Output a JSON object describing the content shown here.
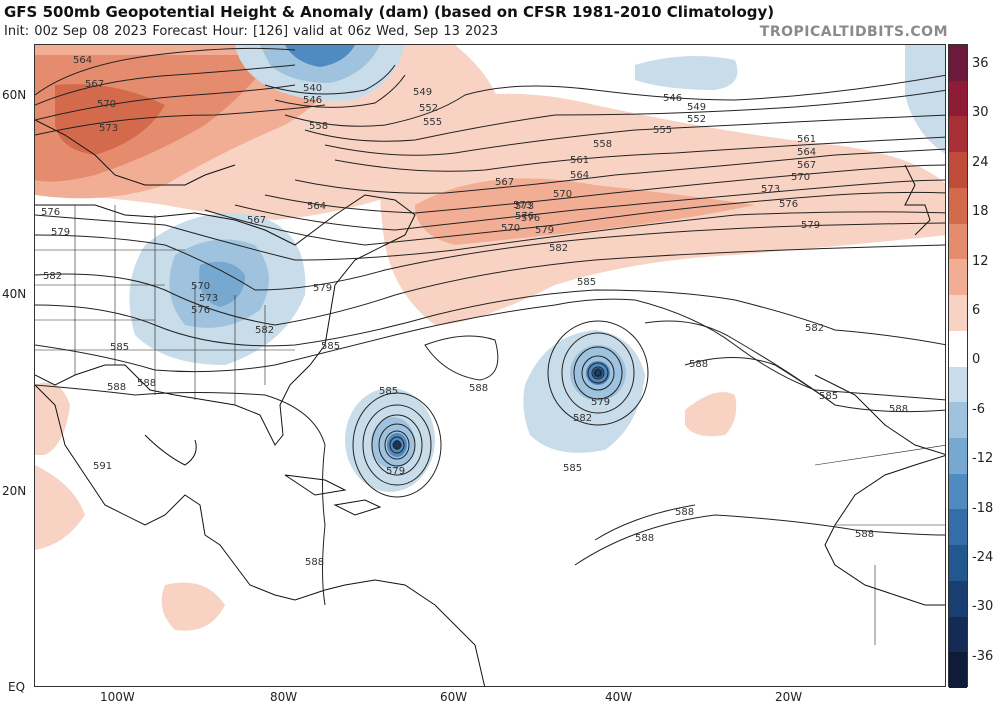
{
  "header": {
    "title": "GFS 500mb Geopotential Height & Anomaly (dam) (based on CFSR 1981-2010 Climatology)",
    "subtitle": "Init: 00z Sep 08 2023   Forecast Hour: [126]   valid at 06z Wed, Sep 13 2023",
    "brand": "TROPICALTIDBITS.COM"
  },
  "axes": {
    "lat_labels": [
      "60N",
      "40N",
      "20N",
      "EQ"
    ],
    "lon_labels": [
      "100W",
      "80W",
      "60W",
      "40W",
      "20W"
    ]
  },
  "colorbar": {
    "ticks": [
      "36",
      "30",
      "24",
      "18",
      "12",
      "6",
      "0",
      "-6",
      "-12",
      "-18",
      "-24",
      "-30",
      "-36"
    ],
    "colors": [
      "#6b1a3c",
      "#8e1c37",
      "#a82f36",
      "#c04b3a",
      "#d46a4c",
      "#e58c6f",
      "#f1ae94",
      "#f8d3c3",
      "#ffffff",
      "#c9dcea",
      "#9fc3df",
      "#76a8d0",
      "#4f8ac0",
      "#336ea8",
      "#22578f",
      "#193f72",
      "#132b55",
      "#0e1c3a"
    ]
  },
  "contour_labels": [
    "564",
    "567",
    "570",
    "573",
    "540",
    "546",
    "549",
    "552",
    "555",
    "558",
    "546",
    "549",
    "552",
    "555",
    "558",
    "561",
    "564",
    "567",
    "570",
    "573",
    "576",
    "579",
    "561",
    "564",
    "567",
    "570",
    "573",
    "576",
    "579",
    "582",
    "585",
    "588",
    "576",
    "579",
    "582",
    "570",
    "573",
    "576",
    "579",
    "582",
    "585",
    "588",
    "591",
    "588",
    "585",
    "579",
    "585",
    "588",
    "582",
    "579",
    "585",
    "588",
    "588",
    "582",
    "585",
    "588",
    "588",
    "588",
    "564",
    "567",
    "570",
    "573",
    "576"
  ],
  "features": {
    "cyclone_west": "579",
    "cyclone_east": "579"
  }
}
